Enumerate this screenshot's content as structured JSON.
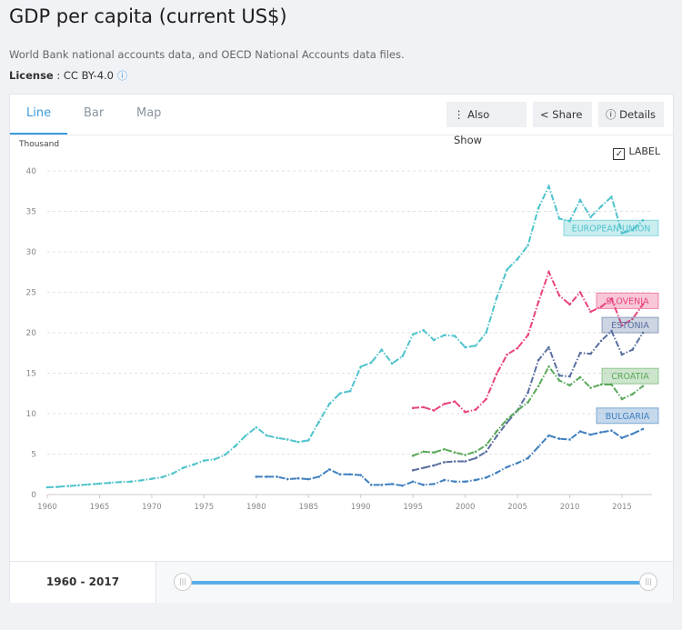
{
  "header": {
    "title": "GDP per capita (current US$)",
    "source": "World Bank national accounts data, and OECD National Accounts data files.",
    "license_label": "License",
    "license_value": " : CC BY-4.0",
    "info_icon": "info-circle-icon"
  },
  "tabs": [
    {
      "label": "Line",
      "active": true
    },
    {
      "label": "Bar"
    },
    {
      "label": "Map"
    }
  ],
  "toolbar": {
    "also_show": "Also Show",
    "share": "Share",
    "details": "Details"
  },
  "label_toggle": {
    "label": "LABEL",
    "checked": true
  },
  "range": {
    "start": "1960",
    "sep": " - ",
    "end": "2017"
  },
  "chart_data": {
    "type": "line",
    "ylabel": "Thousand",
    "ylim": [
      0,
      40
    ],
    "yticks": [
      "0",
      "5",
      "10",
      "15",
      "20",
      "25",
      "30",
      "35",
      "40"
    ],
    "xlim": [
      1960,
      2017
    ],
    "xticks": [
      "1960",
      "1965",
      "1970",
      "1975",
      "1980",
      "1985",
      "1990",
      "1995",
      "2000",
      "2005",
      "2010",
      "2015"
    ],
    "grid": true,
    "legend": "inline-labels-right",
    "series": [
      {
        "name": "EUROPEAN UNION",
        "color": "#4fc3cc",
        "start": 1960,
        "values": [
          0.9,
          0.95,
          1.05,
          1.15,
          1.25,
          1.35,
          1.45,
          1.55,
          1.6,
          1.75,
          1.95,
          2.15,
          2.6,
          3.3,
          3.7,
          4.2,
          4.35,
          4.9,
          6.0,
          7.3,
          8.3,
          7.3,
          7.0,
          6.8,
          6.5,
          6.7,
          9.0,
          11.2,
          12.5,
          12.8,
          15.8,
          16.3,
          17.9,
          16.2,
          17.1,
          19.8,
          20.3,
          19.1,
          19.7,
          19.6,
          18.2,
          18.4,
          20.0,
          24.3,
          27.8,
          29.1,
          30.8,
          35.4,
          38.1,
          34.1,
          33.8,
          36.4,
          34.3,
          35.6,
          36.8,
          32.3,
          32.7,
          33.9
        ]
      },
      {
        "name": "SLOVENIA",
        "color": "#e8447f",
        "start": 1995,
        "values": [
          10.7,
          10.8,
          10.4,
          11.2,
          11.5,
          10.2,
          10.5,
          11.8,
          14.9,
          17.3,
          18.1,
          19.7,
          23.8,
          27.5,
          24.6,
          23.5,
          25.0,
          22.6,
          23.2,
          24.2,
          20.9,
          21.7,
          23.5
        ]
      },
      {
        "name": "ESTONIA",
        "color": "#5a6fa0",
        "start": 1995,
        "values": [
          3.0,
          3.3,
          3.6,
          4.0,
          4.1,
          4.1,
          4.5,
          5.3,
          7.2,
          8.9,
          10.4,
          12.6,
          16.6,
          18.2,
          14.7,
          14.6,
          17.5,
          17.4,
          19.0,
          20.2,
          17.3,
          17.9,
          20.0
        ]
      },
      {
        "name": "CROATIA",
        "color": "#5aa95a",
        "start": 1995,
        "values": [
          4.8,
          5.3,
          5.2,
          5.6,
          5.2,
          4.9,
          5.3,
          6.1,
          7.8,
          9.3,
          10.4,
          11.4,
          13.4,
          15.8,
          14.1,
          13.5,
          14.5,
          13.2,
          13.6,
          13.6,
          11.8,
          12.4,
          13.4
        ]
      },
      {
        "name": "BULGARIA",
        "color": "#3f7fbf",
        "start": 1980,
        "values": [
          2.2,
          2.2,
          2.2,
          1.9,
          2.0,
          1.9,
          2.2,
          3.1,
          2.5,
          2.5,
          2.4,
          1.2,
          1.2,
          1.3,
          1.1,
          1.6,
          1.2,
          1.3,
          1.8,
          1.6,
          1.6,
          1.8,
          2.1,
          2.7,
          3.4,
          3.9,
          4.5,
          5.9,
          7.3,
          6.9,
          6.8,
          7.8,
          7.4,
          7.7,
          7.9,
          7.0,
          7.5,
          8.1
        ]
      }
    ]
  }
}
